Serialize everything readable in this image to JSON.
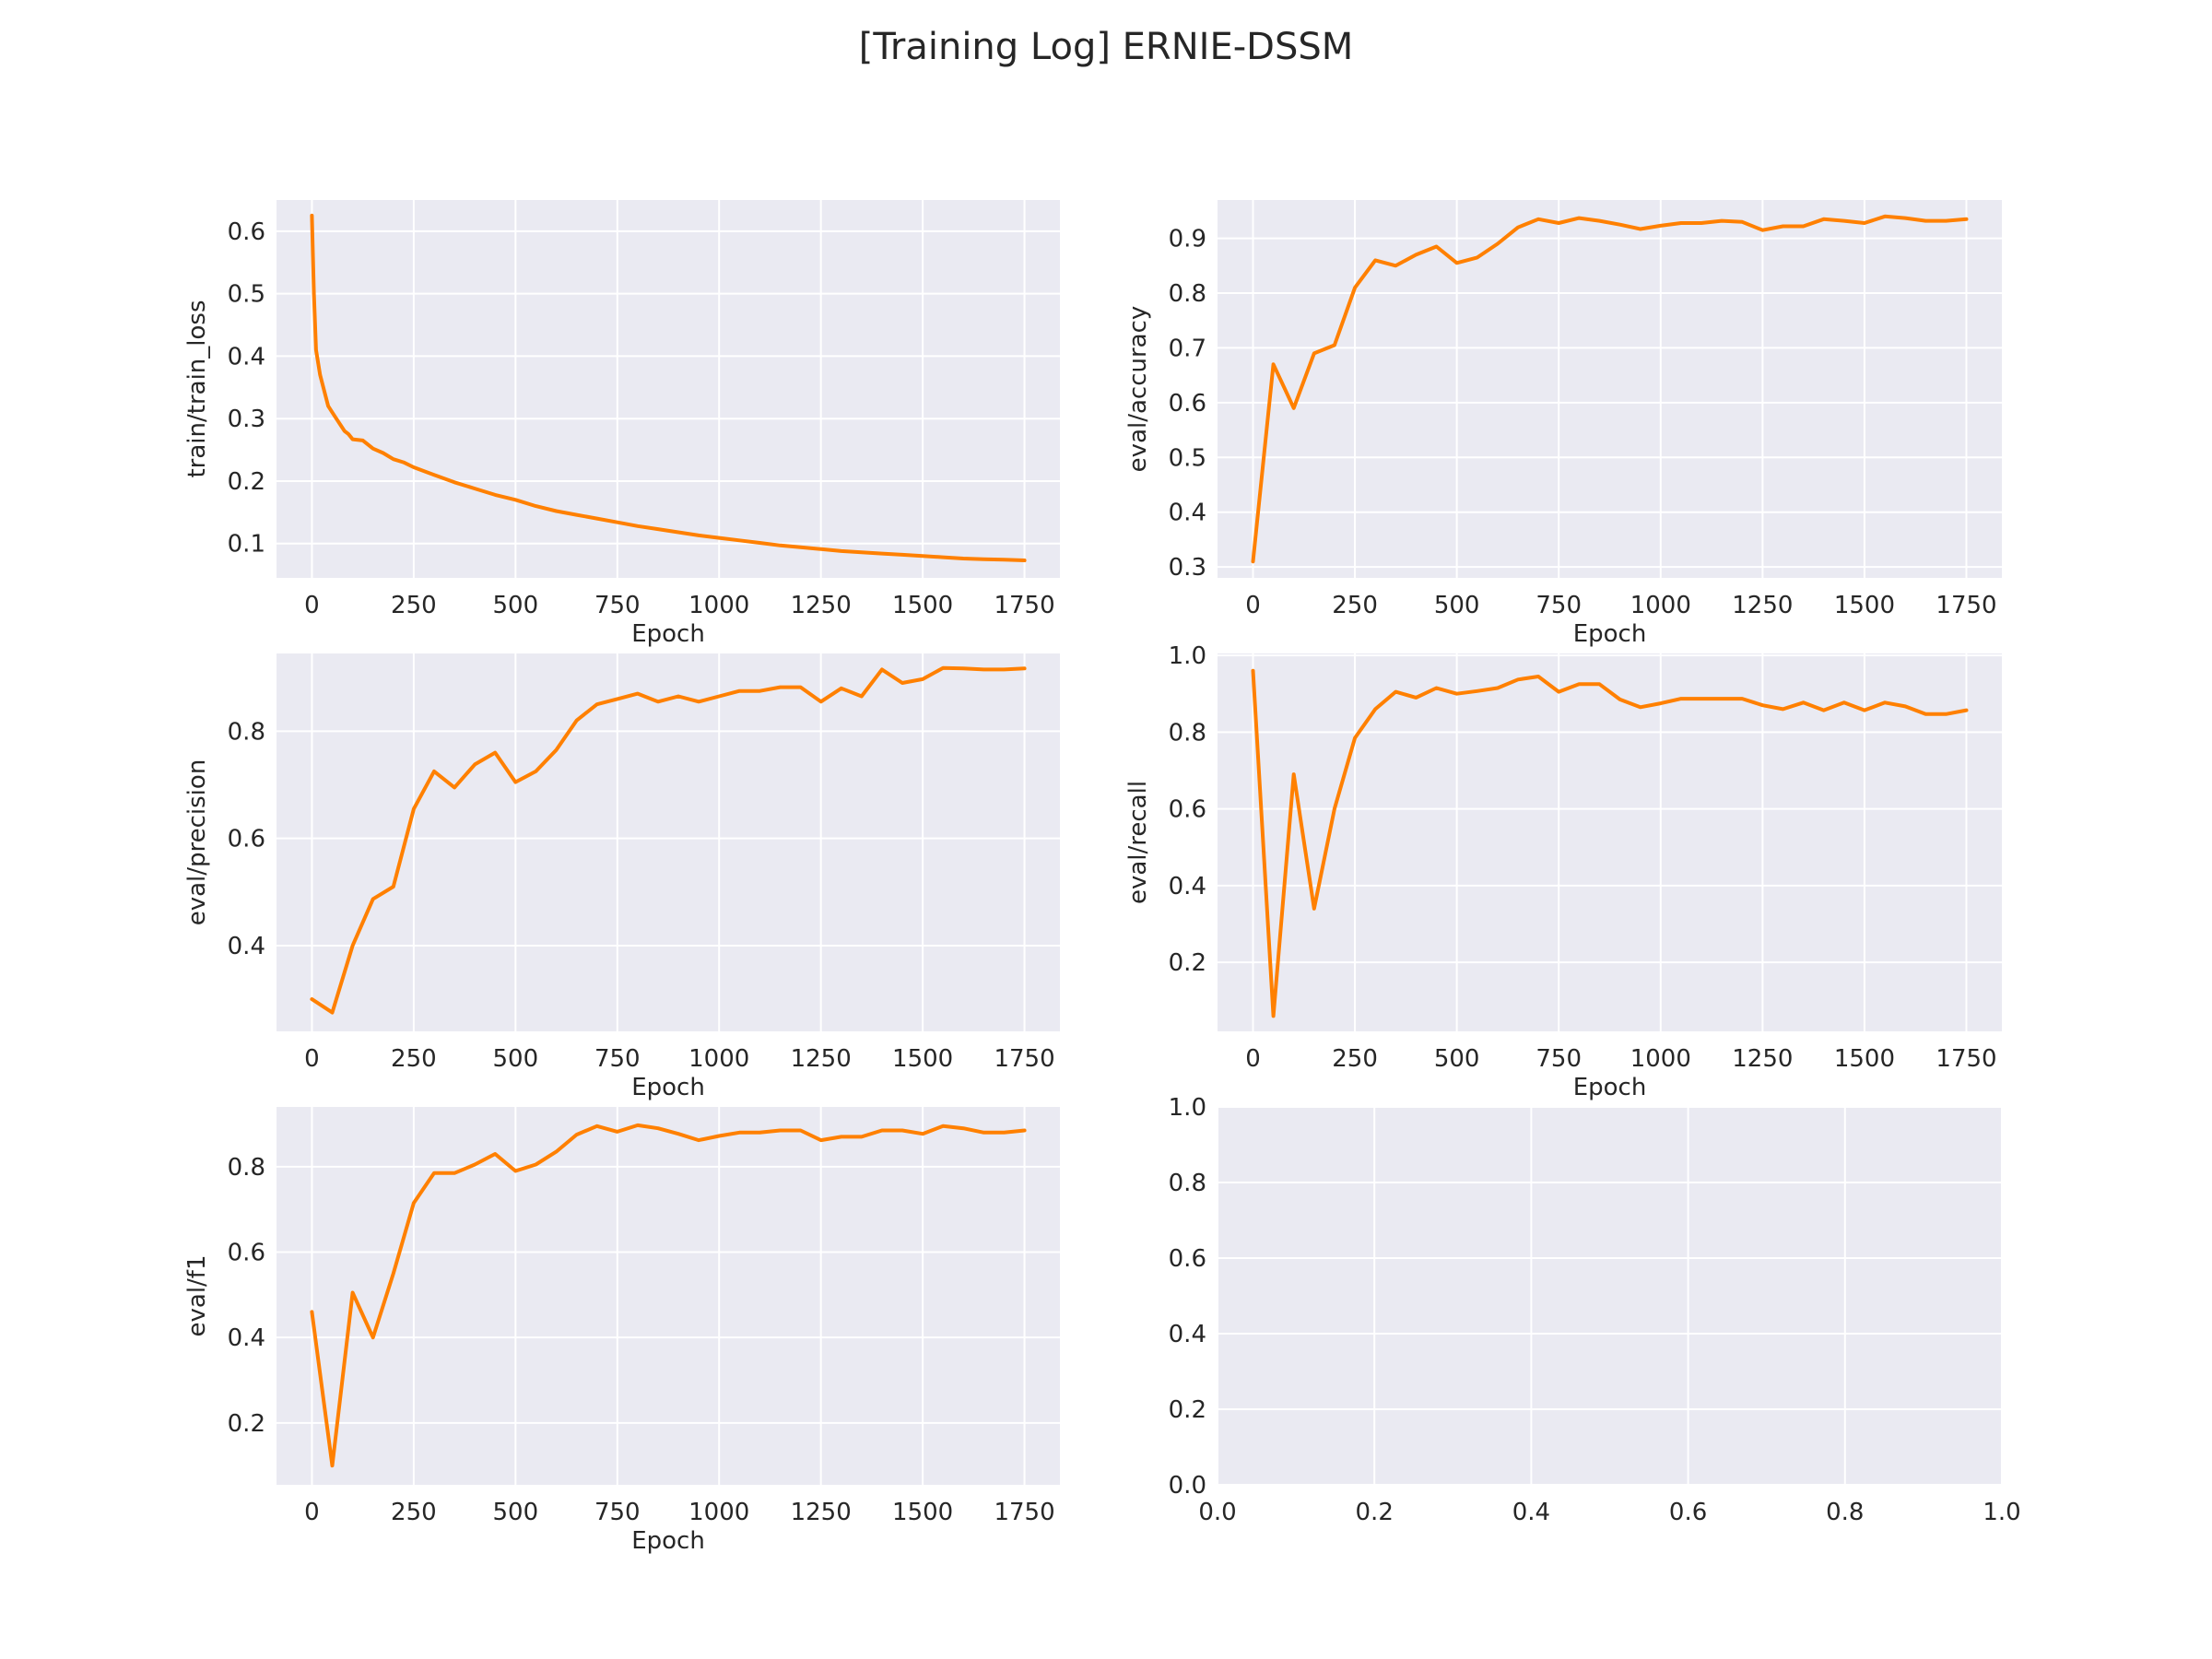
{
  "title": "[Training Log] ERNIE-DSSM",
  "colors": {
    "line": "#ff8000",
    "panel_bg": "#eaeaf2",
    "grid": "#ffffff",
    "text": "#262626"
  },
  "chart_data": [
    {
      "type": "line",
      "xlabel": "Epoch",
      "ylabel": "train/train_loss",
      "xlim": [
        -87,
        1837
      ],
      "ylim": [
        0.045,
        0.65
      ],
      "xticks": [
        "0",
        "250",
        "500",
        "750",
        "1000",
        "1250",
        "1500",
        "1750"
      ],
      "yticks": [
        "0.1",
        "0.2",
        "0.3",
        "0.4",
        "0.5",
        "0.6"
      ],
      "grid": true,
      "series": [
        {
          "x": [
            0,
            5,
            10,
            20,
            30,
            40,
            50,
            60,
            70,
            80,
            90,
            100,
            125,
            150,
            175,
            200,
            225,
            250,
            275,
            300,
            350,
            400,
            450,
            500,
            550,
            600,
            650,
            700,
            750,
            800,
            850,
            900,
            950,
            1000,
            1050,
            1100,
            1150,
            1200,
            1250,
            1300,
            1350,
            1400,
            1450,
            1500,
            1550,
            1600,
            1650,
            1700,
            1750
          ],
          "y": [
            0.625,
            0.5,
            0.41,
            0.37,
            0.345,
            0.32,
            0.31,
            0.3,
            0.29,
            0.28,
            0.275,
            0.267,
            0.265,
            0.252,
            0.245,
            0.235,
            0.23,
            0.222,
            0.216,
            0.21,
            0.198,
            0.188,
            0.178,
            0.17,
            0.16,
            0.152,
            0.146,
            0.14,
            0.134,
            0.128,
            0.123,
            0.118,
            0.113,
            0.109,
            0.105,
            0.101,
            0.097,
            0.094,
            0.091,
            0.088,
            0.086,
            0.084,
            0.082,
            0.08,
            0.078,
            0.076,
            0.075,
            0.074,
            0.073
          ]
        }
      ]
    },
    {
      "type": "line",
      "xlabel": "Epoch",
      "ylabel": "eval/accuracy",
      "xlim": [
        -87,
        1837
      ],
      "ylim": [
        0.28,
        0.97
      ],
      "xticks": [
        "0",
        "250",
        "500",
        "750",
        "1000",
        "1250",
        "1500",
        "1750"
      ],
      "yticks": [
        "0.3",
        "0.4",
        "0.5",
        "0.6",
        "0.7",
        "0.8",
        "0.9"
      ],
      "grid": true,
      "series": [
        {
          "x": [
            0,
            50,
            100,
            150,
            200,
            250,
            300,
            350,
            400,
            450,
            500,
            550,
            600,
            650,
            700,
            750,
            800,
            850,
            900,
            950,
            1000,
            1050,
            1100,
            1150,
            1200,
            1250,
            1300,
            1350,
            1400,
            1450,
            1500,
            1550,
            1600,
            1650,
            1700,
            1750
          ],
          "y": [
            0.31,
            0.67,
            0.59,
            0.69,
            0.705,
            0.81,
            0.86,
            0.85,
            0.87,
            0.885,
            0.855,
            0.865,
            0.89,
            0.92,
            0.935,
            0.928,
            0.937,
            0.932,
            0.925,
            0.917,
            0.923,
            0.928,
            0.928,
            0.932,
            0.93,
            0.915,
            0.922,
            0.922,
            0.935,
            0.932,
            0.928,
            0.94,
            0.937,
            0.932,
            0.932,
            0.935
          ]
        }
      ]
    },
    {
      "type": "line",
      "xlabel": "Epoch",
      "ylabel": "eval/precision",
      "xlim": [
        -87,
        1837
      ],
      "ylim": [
        0.24,
        0.945
      ],
      "xticks": [
        "0",
        "250",
        "500",
        "750",
        "1000",
        "1250",
        "1500",
        "1750"
      ],
      "yticks": [
        "0.4",
        "0.6",
        "0.8"
      ],
      "grid": true,
      "series": [
        {
          "x": [
            0,
            50,
            100,
            150,
            200,
            250,
            300,
            350,
            400,
            450,
            500,
            550,
            600,
            650,
            700,
            750,
            800,
            850,
            900,
            950,
            1000,
            1050,
            1100,
            1150,
            1200,
            1250,
            1300,
            1350,
            1400,
            1450,
            1500,
            1550,
            1600,
            1650,
            1700,
            1750
          ],
          "y": [
            0.3,
            0.275,
            0.4,
            0.487,
            0.51,
            0.655,
            0.725,
            0.695,
            0.738,
            0.76,
            0.705,
            0.725,
            0.765,
            0.82,
            0.85,
            0.86,
            0.87,
            0.855,
            0.865,
            0.855,
            0.865,
            0.875,
            0.875,
            0.882,
            0.882,
            0.855,
            0.88,
            0.865,
            0.915,
            0.89,
            0.897,
            0.918,
            0.917,
            0.915,
            0.915,
            0.917
          ]
        }
      ]
    },
    {
      "type": "line",
      "xlabel": "Epoch",
      "ylabel": "eval/recall",
      "xlim": [
        -87,
        1837
      ],
      "ylim": [
        0.02,
        1.005
      ],
      "xticks": [
        "0",
        "250",
        "500",
        "750",
        "1000",
        "1250",
        "1500",
        "1750"
      ],
      "yticks": [
        "0.2",
        "0.4",
        "0.6",
        "0.8",
        "1.0"
      ],
      "grid": true,
      "series": [
        {
          "x": [
            0,
            50,
            100,
            150,
            200,
            250,
            300,
            350,
            400,
            450,
            500,
            550,
            600,
            650,
            700,
            750,
            800,
            850,
            900,
            950,
            1000,
            1050,
            1100,
            1150,
            1200,
            1250,
            1300,
            1350,
            1400,
            1450,
            1500,
            1550,
            1600,
            1650,
            1700,
            1750
          ],
          "y": [
            0.96,
            0.06,
            0.69,
            0.34,
            0.6,
            0.785,
            0.86,
            0.905,
            0.89,
            0.915,
            0.9,
            0.907,
            0.915,
            0.937,
            0.945,
            0.905,
            0.925,
            0.925,
            0.885,
            0.865,
            0.875,
            0.887,
            0.887,
            0.887,
            0.887,
            0.87,
            0.86,
            0.877,
            0.857,
            0.877,
            0.857,
            0.877,
            0.867,
            0.847,
            0.847,
            0.857
          ]
        }
      ]
    },
    {
      "type": "line",
      "xlabel": "Epoch",
      "ylabel": "eval/f1",
      "xlim": [
        -87,
        1837
      ],
      "ylim": [
        0.055,
        0.94
      ],
      "xticks": [
        "0",
        "250",
        "500",
        "750",
        "1000",
        "1250",
        "1500",
        "1750"
      ],
      "yticks": [
        "0.2",
        "0.4",
        "0.6",
        "0.8"
      ],
      "grid": true,
      "series": [
        {
          "x": [
            0,
            50,
            100,
            150,
            200,
            250,
            300,
            350,
            400,
            450,
            500,
            550,
            600,
            650,
            700,
            750,
            800,
            850,
            900,
            950,
            1000,
            1050,
            1100,
            1150,
            1200,
            1250,
            1300,
            1350,
            1400,
            1450,
            1500,
            1550,
            1600,
            1650,
            1700,
            1750
          ],
          "y": [
            0.46,
            0.1,
            0.505,
            0.4,
            0.55,
            0.715,
            0.785,
            0.785,
            0.805,
            0.83,
            0.79,
            0.805,
            0.835,
            0.875,
            0.895,
            0.882,
            0.897,
            0.89,
            0.877,
            0.862,
            0.872,
            0.88,
            0.88,
            0.885,
            0.885,
            0.862,
            0.87,
            0.87,
            0.885,
            0.885,
            0.877,
            0.895,
            0.89,
            0.88,
            0.88,
            0.885
          ]
        }
      ]
    },
    {
      "type": "line",
      "xlabel": "",
      "ylabel": "",
      "xlim": [
        0,
        1
      ],
      "ylim": [
        0,
        1
      ],
      "xticks": [
        "0.0",
        "0.2",
        "0.4",
        "0.6",
        "0.8",
        "1.0"
      ],
      "yticks": [
        "0.0",
        "0.2",
        "0.4",
        "0.6",
        "0.8",
        "1.0"
      ],
      "grid": true,
      "series": []
    }
  ]
}
